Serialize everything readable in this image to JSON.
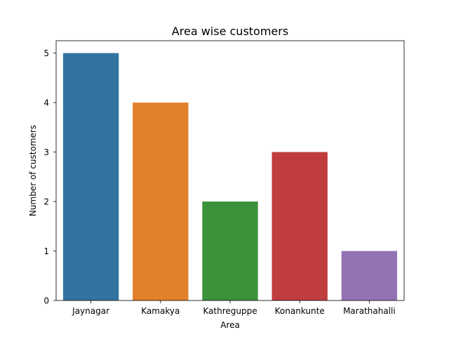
{
  "chart_data": {
    "type": "bar",
    "title": "Area wise customers",
    "xlabel": "Area",
    "ylabel": "Number of customers",
    "categories": [
      "Jaynagar",
      "Kamakya",
      "Kathreguppe",
      "Konankunte",
      "Marathahalli"
    ],
    "values": [
      5,
      4,
      2,
      3,
      1
    ],
    "colors": [
      "#3274a1",
      "#e1812c",
      "#3a923a",
      "#c03d3e",
      "#9372b2"
    ],
    "ylim": [
      0,
      5.25
    ],
    "yticks": [
      0,
      1,
      2,
      3,
      4,
      5
    ],
    "grid": false,
    "legend": "none"
  }
}
